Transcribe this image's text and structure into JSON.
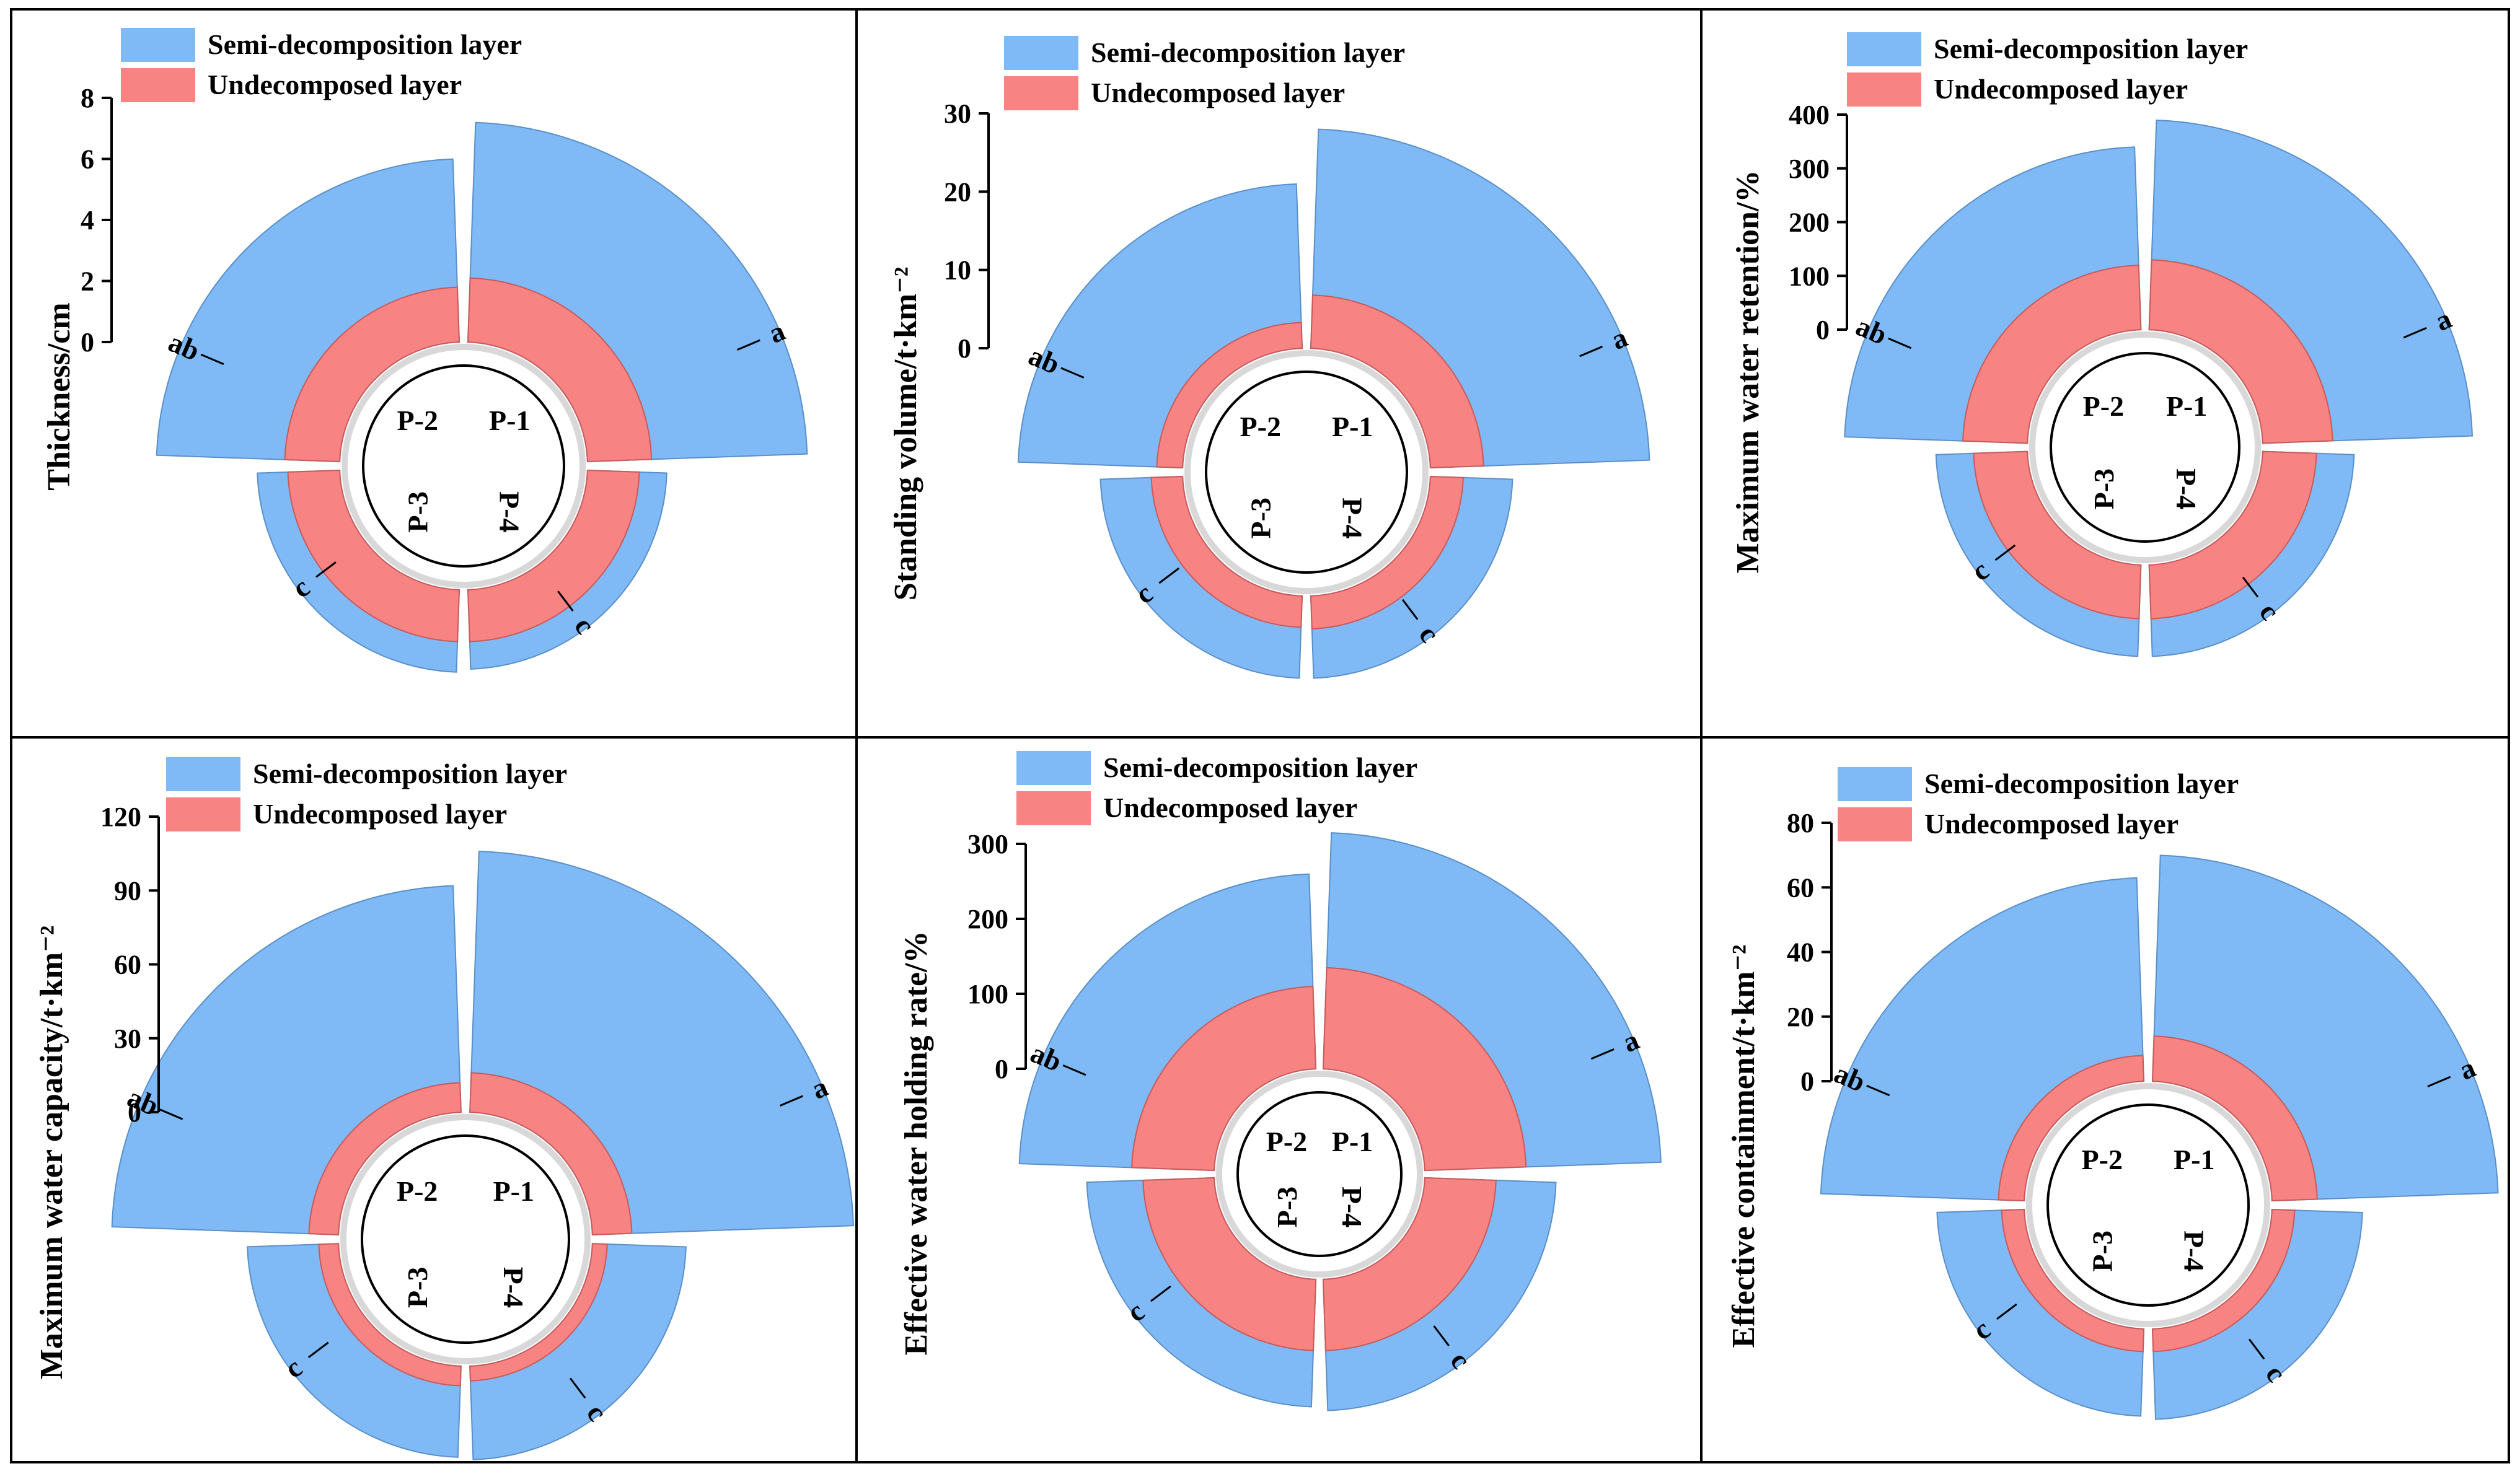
{
  "colors": {
    "semi": "#7fbaf7",
    "undecomposed": "#f88383",
    "semi_stroke": "#5a8fc8",
    "undecomposed_stroke": "#c85a5a",
    "frame": "#000000",
    "inner_circle": "#d8d8d8"
  },
  "legend": {
    "semi_label": "Semi-decomposition layer",
    "undecomposed_label": "Undecomposed layer"
  },
  "plot_labels": [
    "P-1",
    "P-4",
    "P-3",
    "P-2"
  ],
  "chart_data": [
    {
      "type": "polar-bar",
      "ylabel": "Thickness/cm",
      "ylim": [
        0,
        8
      ],
      "yticks": [
        0,
        2,
        4,
        6,
        8
      ],
      "categories": [
        "P-1",
        "P-4",
        "P-3",
        "P-2"
      ],
      "series": [
        {
          "name": "Semi-decomposition layer",
          "values": [
            7.2,
            2.6,
            2.7,
            6.0
          ]
        },
        {
          "name": "Undecomposed layer",
          "values": [
            2.1,
            1.7,
            1.7,
            1.8
          ]
        }
      ],
      "annotations": [
        "a",
        "c",
        "c",
        "ab"
      ]
    },
    {
      "type": "polar-bar",
      "ylabel": "Standing volume/t·km⁻²",
      "ylim": [
        0,
        30
      ],
      "yticks": [
        0,
        10,
        20,
        30
      ],
      "categories": [
        "P-1",
        "P-4",
        "P-3",
        "P-2"
      ],
      "series": [
        {
          "name": "Semi-decomposition layer",
          "values": [
            28,
            10.5,
            10.5,
            21
          ]
        },
        {
          "name": "Undecomposed layer",
          "values": [
            6.8,
            4.2,
            4.0,
            3.3
          ]
        }
      ],
      "annotations": [
        "a",
        "c",
        "c",
        "ab"
      ]
    },
    {
      "type": "polar-bar",
      "ylabel": "Maximum water retention/%",
      "ylim": [
        0,
        400
      ],
      "yticks": [
        0,
        100,
        200,
        300,
        400
      ],
      "categories": [
        "P-1",
        "P-4",
        "P-3",
        "P-2"
      ],
      "series": [
        {
          "name": "Semi-decomposition layer",
          "values": [
            390,
            170,
            170,
            340
          ]
        },
        {
          "name": "Undecomposed layer",
          "values": [
            130,
            100,
            100,
            120
          ]
        }
      ],
      "annotations": [
        "a",
        "c",
        "c",
        "ab"
      ]
    },
    {
      "type": "polar-bar",
      "ylabel": "Maximum water capacity/t·km⁻²",
      "ylim": [
        0,
        120
      ],
      "yticks": [
        0,
        30,
        60,
        90,
        120
      ],
      "categories": [
        "P-1",
        "P-4",
        "P-3",
        "P-2"
      ],
      "series": [
        {
          "name": "Semi-decomposition layer",
          "values": [
            106,
            38,
            37,
            92
          ]
        },
        {
          "name": "Undecomposed layer",
          "values": [
            16,
            6,
            8,
            12
          ]
        }
      ],
      "annotations": [
        "a",
        "c",
        "c",
        "ab"
      ]
    },
    {
      "type": "polar-bar",
      "ylabel": "Effective water holding rate/%",
      "ylim": [
        0,
        300
      ],
      "yticks": [
        0,
        100,
        200,
        300
      ],
      "categories": [
        "P-1",
        "P-4",
        "P-3",
        "P-2"
      ],
      "series": [
        {
          "name": "Semi-decomposition layer",
          "values": [
            315,
            175,
            170,
            260
          ]
        },
        {
          "name": "Undecomposed layer",
          "values": [
            135,
            95,
            95,
            110
          ]
        }
      ],
      "annotations": [
        "a",
        "c",
        "c",
        "ab"
      ]
    },
    {
      "type": "polar-bar",
      "ylabel": "Effective containment/t·km⁻²",
      "ylim": [
        0,
        80
      ],
      "yticks": [
        0,
        20,
        40,
        60,
        80
      ],
      "categories": [
        "P-1",
        "P-4",
        "P-3",
        "P-2"
      ],
      "series": [
        {
          "name": "Semi-decomposition layer",
          "values": [
            70,
            28,
            27,
            63
          ]
        },
        {
          "name": "Undecomposed layer",
          "values": [
            14,
            7,
            7,
            8
          ]
        }
      ],
      "annotations": [
        "a",
        "c",
        "c",
        "ab"
      ]
    }
  ]
}
